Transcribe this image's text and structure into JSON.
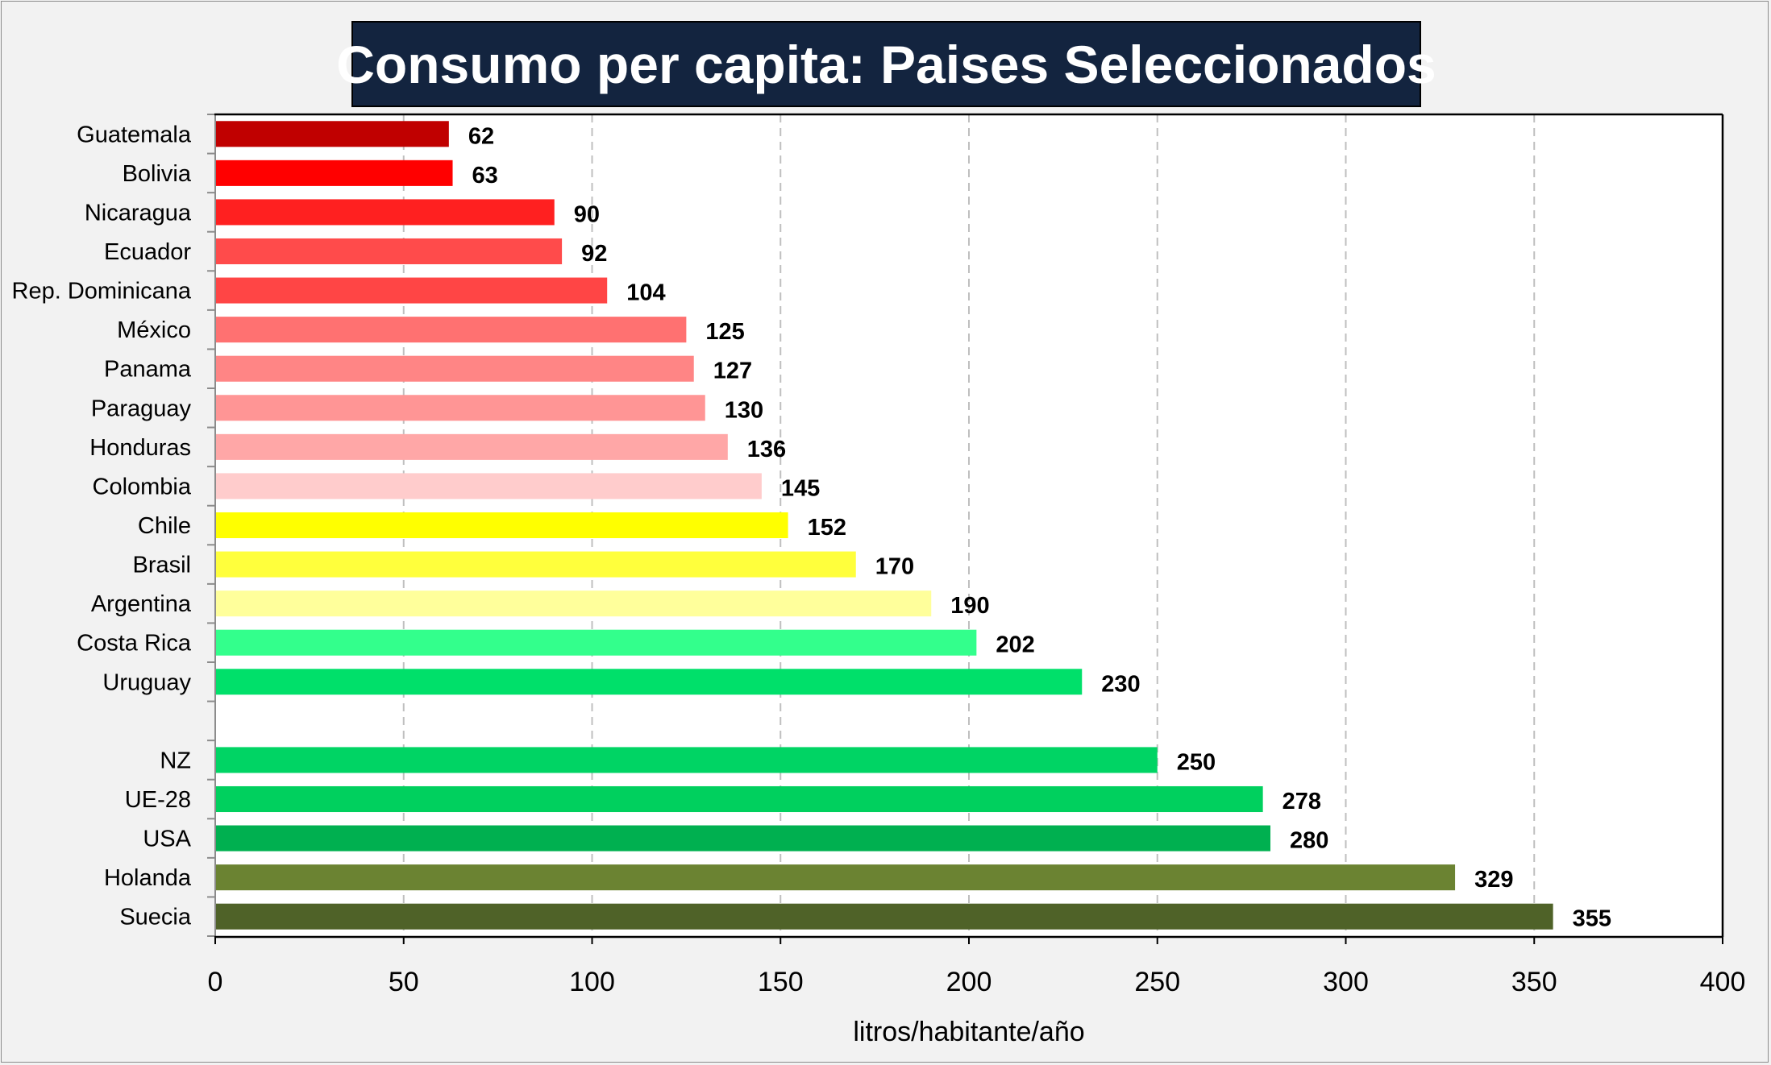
{
  "chart_data": {
    "type": "bar",
    "orientation": "horizontal",
    "title": "Consumo per capita: Paises Seleccionados",
    "xlabel": "litros/habitante/año",
    "ylabel": "",
    "xlim": [
      0,
      400
    ],
    "xticks": [
      0,
      50,
      100,
      150,
      200,
      250,
      300,
      350,
      400
    ],
    "grid": true,
    "bars": [
      {
        "label": "Guatemala",
        "value": 62,
        "color": "#c00000"
      },
      {
        "label": "Bolivia",
        "value": 63,
        "color": "#ff0000"
      },
      {
        "label": "Nicaragua",
        "value": 90,
        "color": "#ff2020"
      },
      {
        "label": "Ecuador",
        "value": 92,
        "color": "#ff4b4b"
      },
      {
        "label": "Rep. Dominicana",
        "value": 104,
        "color": "#ff4545"
      },
      {
        "label": "México",
        "value": 125,
        "color": "#ff7171"
      },
      {
        "label": "Panama",
        "value": 127,
        "color": "#ff8585"
      },
      {
        "label": "Paraguay",
        "value": 130,
        "color": "#ff9595"
      },
      {
        "label": "Honduras",
        "value": 136,
        "color": "#ffa7a7"
      },
      {
        "label": "Colombia",
        "value": 145,
        "color": "#ffcccc"
      },
      {
        "label": "Chile",
        "value": 152,
        "color": "#ffff00"
      },
      {
        "label": "Brasil",
        "value": 170,
        "color": "#ffff3c"
      },
      {
        "label": "Argentina",
        "value": 190,
        "color": "#ffff9b"
      },
      {
        "label": "Costa Rica",
        "value": 202,
        "color": "#33ff8c"
      },
      {
        "label": "Uruguay",
        "value": 230,
        "color": "#00e06a"
      },
      {
        "label": "",
        "value": null,
        "color": ""
      },
      {
        "label": "NZ",
        "value": 250,
        "color": "#00d464"
      },
      {
        "label": "UE-28",
        "value": 278,
        "color": "#00d05e"
      },
      {
        "label": "USA",
        "value": 280,
        "color": "#00b050"
      },
      {
        "label": "Holanda",
        "value": 329,
        "color": "#6b8332"
      },
      {
        "label": "Suecia",
        "value": 355,
        "color": "#4f6228"
      }
    ]
  }
}
